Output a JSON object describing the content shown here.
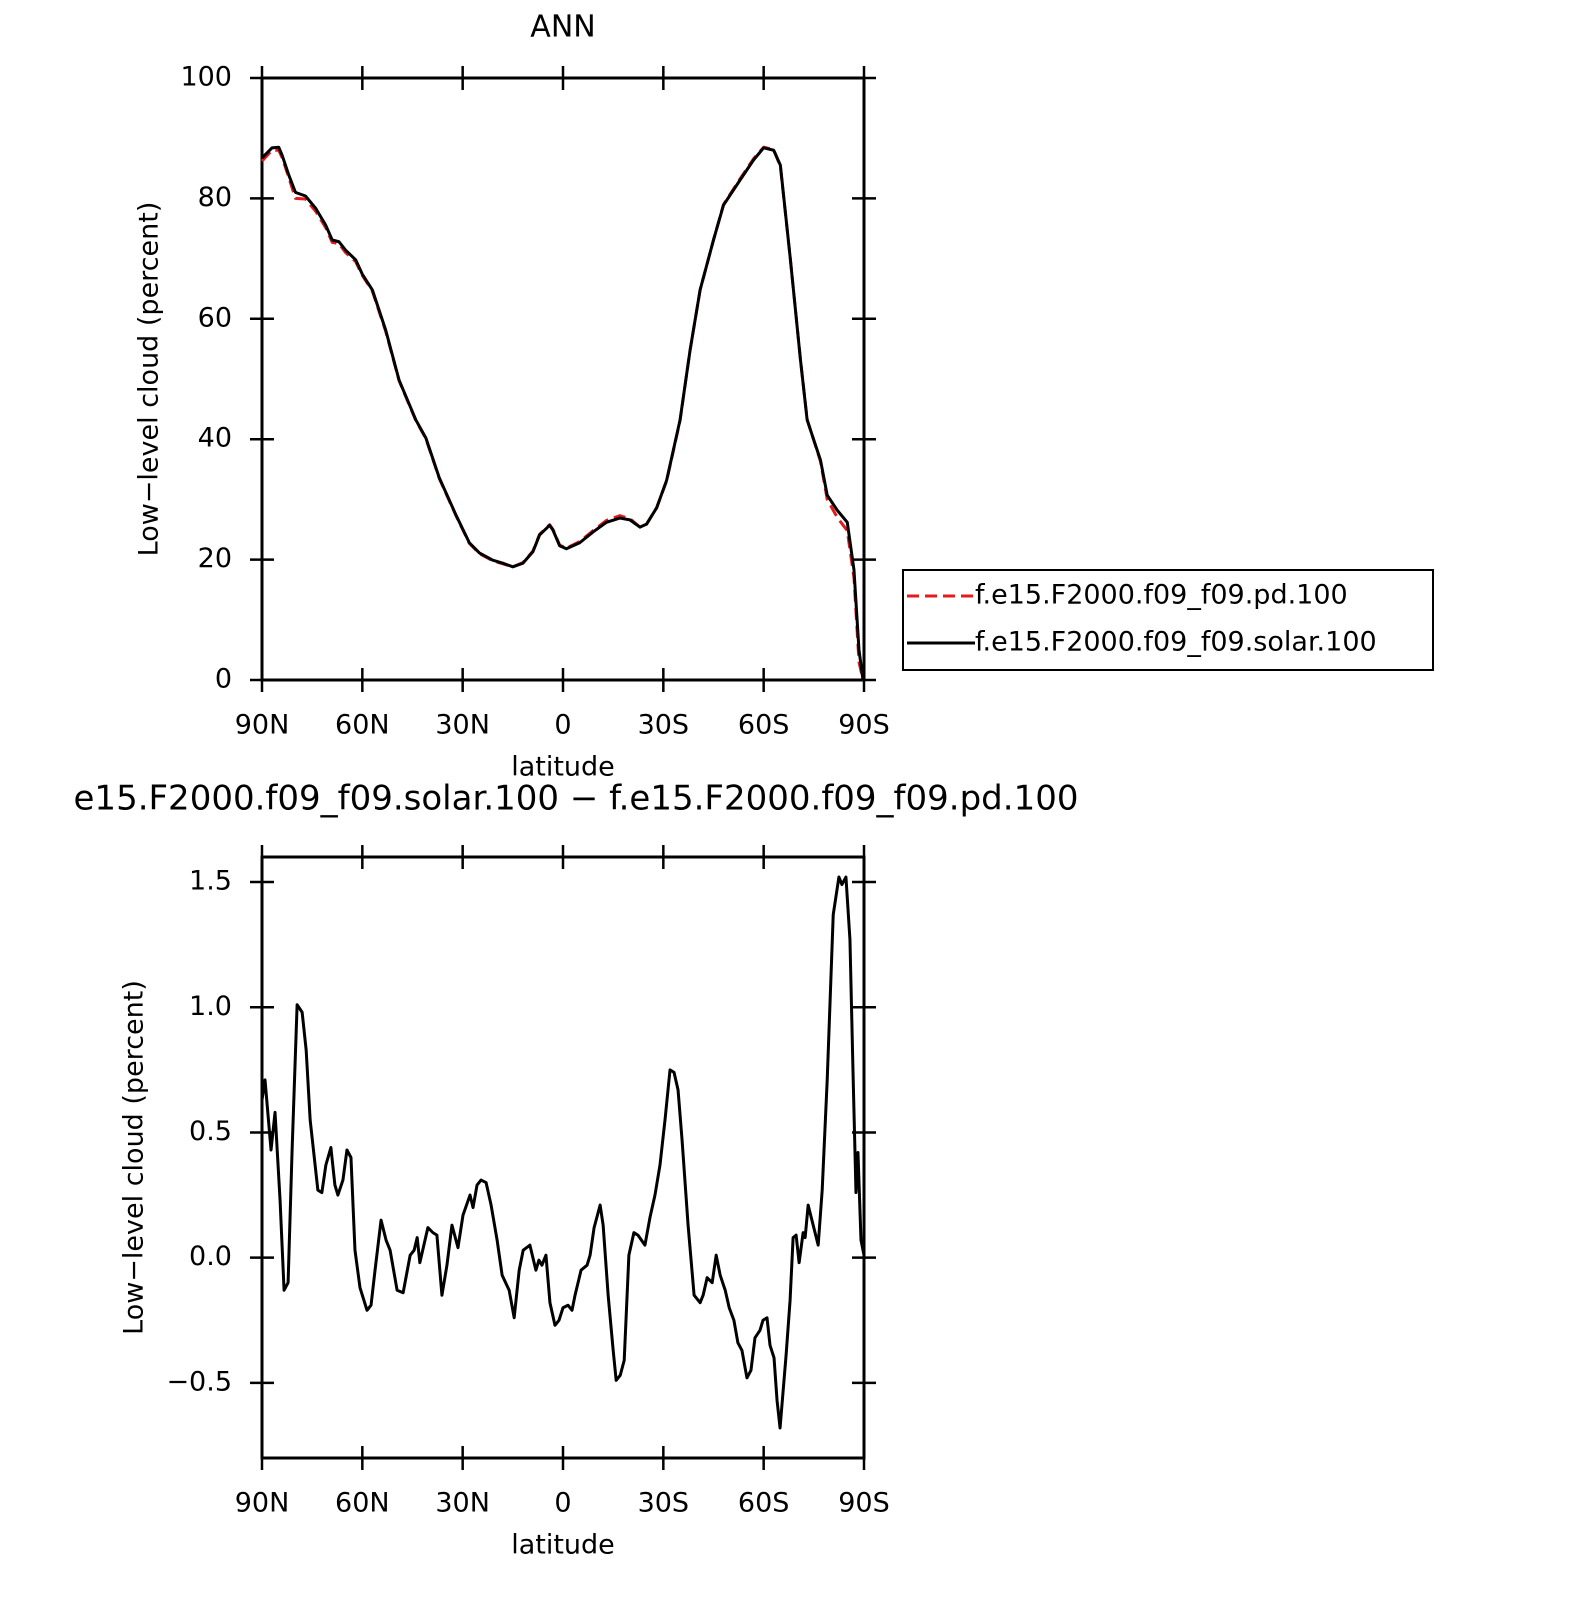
{
  "chart_data": [
    {
      "type": "line",
      "title": "ANN",
      "xlabel": "latitude",
      "ylabel": "Low−level cloud (percent)",
      "x": [
        90,
        87,
        85,
        84,
        82,
        80,
        77,
        74,
        71,
        69,
        67,
        65,
        62,
        60,
        57,
        53,
        49,
        44,
        41,
        37,
        32,
        28,
        25,
        21,
        18,
        15,
        12,
        9,
        7,
        4,
        3,
        1,
        -1,
        -5,
        -9,
        -13,
        -17,
        -20,
        -23,
        -25,
        -28,
        -31,
        -35,
        -38,
        -41,
        -45,
        -48,
        -53,
        -57,
        -60,
        -63,
        -65,
        -68,
        -71,
        -73,
        -77,
        -79,
        -82,
        -85,
        -87,
        -88.5,
        -89.7
      ],
      "series": [
        {
          "name": "f.e15.F2000.f09_f09.pd.100",
          "color": "#e41a1c",
          "line_style": "dashed",
          "values": [
            86.2,
            88,
            88,
            86.8,
            83.5,
            80,
            79.9,
            77.9,
            75.2,
            72.7,
            72.5,
            71,
            69.5,
            67.2,
            64.6,
            57.9,
            49.7,
            43.1,
            40.1,
            33.5,
            27.3,
            22.7,
            21,
            19.8,
            19.3,
            18.8,
            19.5,
            21.4,
            24.2,
            25.8,
            25,
            22.4,
            21.9,
            23,
            24.8,
            26.5,
            27.3,
            26.8,
            25.4,
            25.9,
            28.6,
            33.1,
            43.1,
            54.8,
            64.8,
            73.1,
            79,
            83.3,
            86.6,
            88.5,
            88.1,
            85.3,
            69.8,
            53.2,
            43.3,
            36.3,
            30,
            27,
            24.8,
            17,
            3,
            0
          ]
        },
        {
          "name": "f.e15.F2000.f09_f09.solar.100",
          "color": "#000000",
          "line_style": "solid",
          "values": [
            86.7,
            88.4,
            88.5,
            87.2,
            83.9,
            81,
            80.4,
            78.4,
            75.6,
            73.1,
            72.8,
            71.4,
            69.8,
            67.4,
            64.8,
            58.1,
            49.8,
            43.2,
            40.2,
            33.6,
            27.4,
            22.8,
            21.1,
            19.9,
            19.4,
            18.8,
            19.4,
            21.3,
            24.1,
            25.7,
            24.9,
            22.3,
            21.8,
            22.8,
            24.6,
            26.2,
            26.9,
            26.6,
            25.4,
            25.9,
            28.6,
            33.2,
            43.2,
            54.8,
            64.8,
            73.1,
            78.9,
            83.1,
            86.4,
            88.4,
            88,
            85.5,
            69.8,
            53.2,
            43.2,
            36.5,
            30.7,
            28.2,
            26.2,
            18.3,
            5,
            0
          ]
        }
      ],
      "xlim": [
        90,
        -90
      ],
      "xticks": [
        {
          "value": 90,
          "label": "90N"
        },
        {
          "value": 60,
          "label": "60N"
        },
        {
          "value": 30,
          "label": "30N"
        },
        0,
        {
          "value": -30,
          "label": "30S"
        },
        {
          "value": -60,
          "label": "60S"
        },
        {
          "value": -90,
          "label": "90S"
        }
      ],
      "ylim": [
        0,
        100
      ],
      "yticks": [
        0,
        20,
        40,
        60,
        80,
        100
      ],
      "legend": "outside-right"
    },
    {
      "type": "line",
      "title": "e15.F2000.f09_f09.solar.100 − f.e15.F2000.f09_f09.pd.100",
      "xlabel": "latitude",
      "ylabel": "Low−level cloud (percent)",
      "x": [
        90,
        89.1,
        87.3,
        86.1,
        84.6,
        83.4,
        82.2,
        81.0,
        79.5,
        78.0,
        76.8,
        75.6,
        73.3,
        72.1,
        70.9,
        69.4,
        68.2,
        67.3,
        65.8,
        64.6,
        63.4,
        62.2,
        60.7,
        58.6,
        57.4,
        56.2,
        54.4,
        52.9,
        51.7,
        49.6,
        47.8,
        45.7,
        44.5,
        43.6,
        42.8,
        41.6,
        40.4,
        38.9,
        37.7,
        36.2,
        34.7,
        33.2,
        31.4,
        29.9,
        27.8,
        26.9,
        25.7,
        24.5,
        23.0,
        21.5,
        19.7,
        18.2,
        16.1,
        14.6,
        13.1,
        11.9,
        9.9,
        8.1,
        7.2,
        6.3,
        5.1,
        3.9,
        2.4,
        1.2,
        0,
        -1.5,
        -2.7,
        -3.6,
        -5.4,
        -7.2,
        -8.1,
        -9.3,
        -11.1,
        -12.0,
        -13.5,
        -15.0,
        -15.9,
        -17.1,
        -18.3,
        -19.7,
        -21.2,
        -22.4,
        -24.5,
        -26.0,
        -27.5,
        -29.0,
        -30.5,
        -32.0,
        -33.2,
        -34.4,
        -35.6,
        -37.4,
        -39.2,
        -41.0,
        -41.9,
        -43.1,
        -44.6,
        -45.8,
        -47.0,
        -48.5,
        -49.7,
        -51.1,
        -52.3,
        -53.5,
        -55.0,
        -56.2,
        -57.4,
        -58.9,
        -59.8,
        -61.0,
        -61.9,
        -63.1,
        -64.0,
        -64.9,
        -66.7,
        -67.9,
        -68.8,
        -69.7,
        -70.6,
        -71.8,
        -72.4,
        -73.3,
        -74.8,
        -76.3,
        -77.5,
        -79.0,
        -80.8,
        -82.5,
        -83.4,
        -84.6,
        -85.8,
        -86.7,
        -87.6,
        -88.2,
        -89.1,
        -90
      ],
      "series": [
        {
          "color": "#000000",
          "line_style": "solid",
          "values": [
            0.63,
            0.71,
            0.43,
            0.58,
            0.23,
            -0.13,
            -0.1,
            0.43,
            1.01,
            0.98,
            0.83,
            0.55,
            0.27,
            0.26,
            0.37,
            0.44,
            0.29,
            0.25,
            0.31,
            0.43,
            0.4,
            0.03,
            -0.12,
            -0.21,
            -0.19,
            -0.05,
            0.15,
            0.07,
            0.03,
            -0.13,
            -0.14,
            0.01,
            0.03,
            0.08,
            -0.02,
            0.05,
            0.12,
            0.1,
            0.09,
            -0.15,
            -0.03,
            0.13,
            0.04,
            0.17,
            0.25,
            0.2,
            0.29,
            0.31,
            0.3,
            0.21,
            0.07,
            -0.07,
            -0.13,
            -0.24,
            -0.05,
            0.03,
            0.05,
            -0.05,
            -0.01,
            -0.03,
            0.01,
            -0.18,
            -0.27,
            -0.25,
            -0.2,
            -0.19,
            -0.21,
            -0.15,
            -0.05,
            -0.03,
            0.01,
            0.12,
            0.21,
            0.13,
            -0.15,
            -0.37,
            -0.49,
            -0.47,
            -0.41,
            0.01,
            0.1,
            0.09,
            0.05,
            0.16,
            0.25,
            0.37,
            0.55,
            0.75,
            0.74,
            0.67,
            0.47,
            0.13,
            -0.15,
            -0.18,
            -0.15,
            -0.08,
            -0.1,
            0.01,
            -0.07,
            -0.13,
            -0.2,
            -0.25,
            -0.34,
            -0.37,
            -0.48,
            -0.45,
            -0.32,
            -0.29,
            -0.25,
            -0.24,
            -0.35,
            -0.4,
            -0.57,
            -0.68,
            -0.39,
            -0.17,
            0.08,
            0.09,
            -0.02,
            0.1,
            0.08,
            0.21,
            0.13,
            0.05,
            0.27,
            0.71,
            1.37,
            1.52,
            1.49,
            1.52,
            1.27,
            0.75,
            0.26,
            0.42,
            0.07,
            0.01
          ]
        }
      ],
      "xlim": [
        90,
        -90
      ],
      "xticks": [
        {
          "value": 90,
          "label": "90N"
        },
        {
          "value": 60,
          "label": "60N"
        },
        {
          "value": 30,
          "label": "30N"
        },
        0,
        {
          "value": -30,
          "label": "30S"
        },
        {
          "value": -60,
          "label": "60S"
        },
        {
          "value": -90,
          "label": "90S"
        }
      ],
      "ylim": [
        -0.8,
        1.6
      ],
      "yticks": [
        {
          "value": -0.5,
          "label": "−0.5"
        },
        {
          "value": 0,
          "label": "0.0"
        },
        {
          "value": 0.5,
          "label": "0.5"
        },
        {
          "value": 1,
          "label": "1.0"
        },
        {
          "value": 1.5,
          "label": "1.5"
        }
      ]
    }
  ]
}
